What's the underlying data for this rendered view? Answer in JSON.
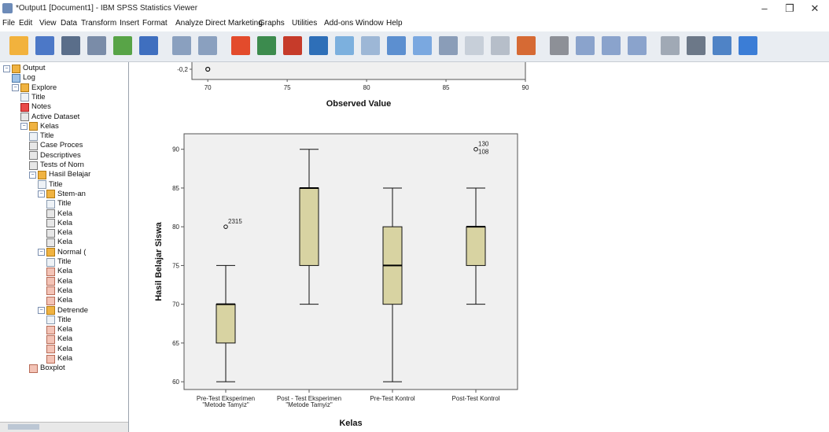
{
  "window": {
    "title": "*Output1 [Document1] - IBM SPSS Statistics Viewer",
    "controls": [
      "–",
      "❐",
      "✕"
    ]
  },
  "menu": [
    "File",
    "Edit",
    "View",
    "Data",
    "Transform",
    "Insert",
    "Format",
    "Analyze",
    "Direct Marketing",
    "Graphs",
    "Utilities",
    "Add-ons",
    "Window",
    "Help"
  ],
  "toolbar_icons": [
    "open-icon",
    "save-icon",
    "print-icon",
    "print-preview-icon",
    "export-icon",
    "recall-dialog-icon",
    "undo-icon",
    "redo-icon",
    "goto-data-icon",
    "goto-case-icon",
    "goto-variable-icon",
    "variables-icon",
    "run-descriptives-icon",
    "use-variable-sets-icon",
    "show-all-variables-icon",
    "spelling-icon",
    "designate-window-icon",
    "select-last-output-icon",
    "promote-icon",
    "demote-icon",
    "expand-icon",
    "collapse-icon",
    "show-icon",
    "hide-icon",
    "insert-heading-icon",
    "insert-title-icon",
    "insert-text-icon",
    "insert-chart-icon"
  ],
  "tree": [
    {
      "label": "Output",
      "level": 0,
      "icon": "book",
      "box": "−"
    },
    {
      "label": "Log",
      "level": 1,
      "icon": "log"
    },
    {
      "label": "Explore",
      "level": 1,
      "icon": "book",
      "box": "−"
    },
    {
      "label": "Title",
      "level": 2,
      "icon": "title"
    },
    {
      "label": "Notes",
      "level": 2,
      "icon": "note"
    },
    {
      "label": "Active Dataset",
      "level": 2,
      "icon": "table"
    },
    {
      "label": "Kelas",
      "level": 2,
      "icon": "book",
      "box": "−"
    },
    {
      "label": "Title",
      "level": 3,
      "icon": "title"
    },
    {
      "label": "Case Proces",
      "level": 3,
      "icon": "table"
    },
    {
      "label": "Descriptives",
      "level": 3,
      "icon": "table"
    },
    {
      "label": "Tests of Norn",
      "level": 3,
      "icon": "table"
    },
    {
      "label": "Hasil Belajar",
      "level": 3,
      "icon": "book",
      "box": "−"
    },
    {
      "label": "Title",
      "level": 4,
      "icon": "title"
    },
    {
      "label": "Stem-an",
      "level": 4,
      "icon": "book",
      "box": "−"
    },
    {
      "label": "Title",
      "level": 5,
      "icon": "title"
    },
    {
      "label": "Kela",
      "level": 5,
      "icon": "table"
    },
    {
      "label": "Kela",
      "level": 5,
      "icon": "table"
    },
    {
      "label": "Kela",
      "level": 5,
      "icon": "table"
    },
    {
      "label": "Kela",
      "level": 5,
      "icon": "table"
    },
    {
      "label": "Normal (",
      "level": 4,
      "icon": "book",
      "box": "−"
    },
    {
      "label": "Title",
      "level": 5,
      "icon": "title"
    },
    {
      "label": "Kela",
      "level": 5,
      "icon": "chart"
    },
    {
      "label": "Kela",
      "level": 5,
      "icon": "chart"
    },
    {
      "label": "Kela",
      "level": 5,
      "icon": "chart"
    },
    {
      "label": "Kela",
      "level": 5,
      "icon": "chart"
    },
    {
      "label": "Detrende",
      "level": 4,
      "icon": "book",
      "box": "−"
    },
    {
      "label": "Title",
      "level": 5,
      "icon": "title"
    },
    {
      "label": "Kela",
      "level": 5,
      "icon": "chart"
    },
    {
      "label": "Kela",
      "level": 5,
      "icon": "chart"
    },
    {
      "label": "Kela",
      "level": 5,
      "icon": "chart"
    },
    {
      "label": "Kela",
      "level": 5,
      "icon": "chart"
    },
    {
      "label": "Boxplot",
      "level": 3,
      "icon": "chart"
    }
  ],
  "colors": {
    "box_fill": "#d8d3a2",
    "plot_bg": "#f0f0f0",
    "toolbar_bg": "#e9edf2"
  },
  "chart_data": [
    {
      "type": "scatter",
      "partial": true,
      "xlabel": "Observed Value",
      "x_ticks": [
        70,
        75,
        80,
        85,
        90
      ],
      "xlim": [
        69,
        90
      ],
      "y_visible_tick": "-0,2",
      "points": [
        {
          "x": 70,
          "y": -0.2
        }
      ]
    },
    {
      "type": "boxplot",
      "xlabel": "Kelas",
      "ylabel": "Hasil Belajar Siswa",
      "ylim": [
        59,
        92
      ],
      "y_ticks": [
        60,
        65,
        70,
        75,
        80,
        85,
        90
      ],
      "categories": [
        [
          "Pre-Test Eksperimen",
          "\"Metode Tamyiz\""
        ],
        [
          "Post - Test Eksperimen",
          "\"Metode Tamyiz\""
        ],
        [
          "Pre-Test Kontrol"
        ],
        [
          "Post-Test Kontrol"
        ]
      ],
      "boxes": [
        {
          "min": 60,
          "q1": 65,
          "median": 70,
          "q3": 70,
          "max": 75,
          "outliers": [
            {
              "value": 80,
              "label": "2315"
            }
          ]
        },
        {
          "min": 70,
          "q1": 75,
          "median": 85,
          "q3": 85,
          "max": 90,
          "outliers": []
        },
        {
          "min": 60,
          "q1": 70,
          "median": 75,
          "q3": 80,
          "max": 85,
          "outliers": []
        },
        {
          "min": 70,
          "q1": 75,
          "median": 80,
          "q3": 80,
          "max": 85,
          "outliers": [
            {
              "value": 90,
              "label": "130"
            },
            {
              "value": 90,
              "label": "108"
            }
          ]
        }
      ]
    }
  ]
}
